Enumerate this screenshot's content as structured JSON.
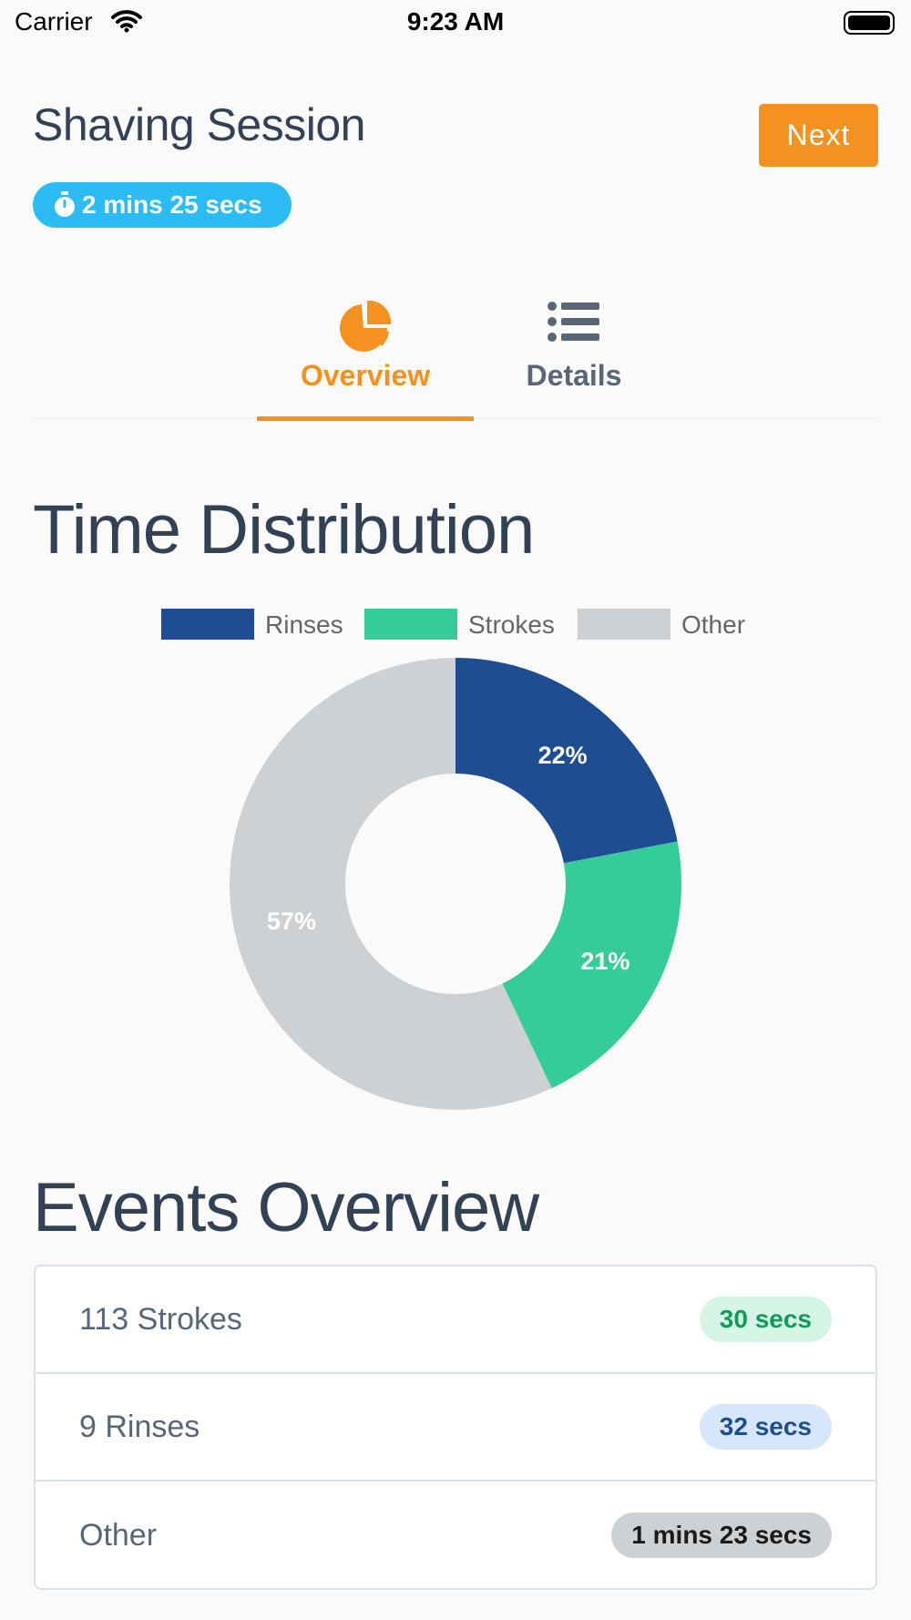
{
  "status_bar": {
    "carrier": "Carrier",
    "time": "9:23 AM"
  },
  "header": {
    "title": "Shaving Session",
    "next_label": "Next",
    "duration": "2 mins 25 secs"
  },
  "tabs": [
    {
      "label": "Overview",
      "icon": "pie-chart-icon",
      "active": true
    },
    {
      "label": "Details",
      "icon": "list-icon",
      "active": false
    }
  ],
  "sections": {
    "time_distribution": "Time Distribution",
    "events_overview": "Events Overview"
  },
  "colors": {
    "accent": "#f59120",
    "badge": "#2bbcf5",
    "rinses": "#1e4d92",
    "strokes": "#34cc98",
    "other": "#ced1d4"
  },
  "chart_data": {
    "type": "pie",
    "donut": true,
    "categories": [
      "Rinses",
      "Strokes",
      "Other"
    ],
    "values": [
      22,
      21,
      57
    ],
    "data_labels": [
      "22%",
      "21%",
      "57%"
    ],
    "legend_position": "top"
  },
  "events": [
    {
      "label": "113 Strokes",
      "value": "30 secs",
      "pill_bg": "#d5f5e6",
      "pill_fg": "#139a5a"
    },
    {
      "label": "9 Rinses",
      "value": "32 secs",
      "pill_bg": "#d6e6fb",
      "pill_fg": "#1e4d92"
    },
    {
      "label": "Other",
      "value": "1 mins 23 secs",
      "pill_bg": "#ced1d4",
      "pill_fg": "#1a1a1a"
    }
  ]
}
